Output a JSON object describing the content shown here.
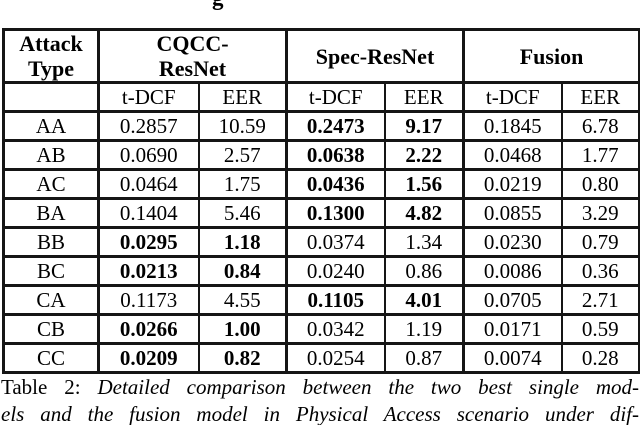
{
  "page": {
    "partial_top_text": "g"
  },
  "table": {
    "header": {
      "attack_type_line1": "Attack",
      "attack_type_line2": "Type",
      "groups": [
        {
          "label": "CQCC-ResNet",
          "line1": "CQCC-",
          "line2": "ResNet"
        },
        {
          "label": "Spec-ResNet"
        },
        {
          "label": "Fusion"
        }
      ],
      "metric_labels": [
        "t-DCF",
        "EER",
        "t-DCF",
        "EER",
        "t-DCF",
        "EER"
      ]
    },
    "rows": [
      {
        "attack": "AA",
        "values": [
          "0.2857",
          "10.59",
          "0.2473",
          "9.17",
          "0.1845",
          "6.78"
        ],
        "bold": [
          false,
          false,
          true,
          true,
          false,
          false
        ]
      },
      {
        "attack": "AB",
        "values": [
          "0.0690",
          "2.57",
          "0.0638",
          "2.22",
          "0.0468",
          "1.77"
        ],
        "bold": [
          false,
          false,
          true,
          true,
          false,
          false
        ]
      },
      {
        "attack": "AC",
        "values": [
          "0.0464",
          "1.75",
          "0.0436",
          "1.56",
          "0.0219",
          "0.80"
        ],
        "bold": [
          false,
          false,
          true,
          true,
          false,
          false
        ]
      },
      {
        "attack": "BA",
        "values": [
          "0.1404",
          "5.46",
          "0.1300",
          "4.82",
          "0.0855",
          "3.29"
        ],
        "bold": [
          false,
          false,
          true,
          true,
          false,
          false
        ]
      },
      {
        "attack": "BB",
        "values": [
          "0.0295",
          "1.18",
          "0.0374",
          "1.34",
          "0.0230",
          "0.79"
        ],
        "bold": [
          true,
          true,
          false,
          false,
          false,
          false
        ]
      },
      {
        "attack": "BC",
        "values": [
          "0.0213",
          "0.84",
          "0.0240",
          "0.86",
          "0.0086",
          "0.36"
        ],
        "bold": [
          true,
          true,
          false,
          false,
          false,
          false
        ]
      },
      {
        "attack": "CA",
        "values": [
          "0.1173",
          "4.55",
          "0.1105",
          "4.01",
          "0.0705",
          "2.71"
        ],
        "bold": [
          false,
          false,
          true,
          true,
          false,
          false
        ]
      },
      {
        "attack": "CB",
        "values": [
          "0.0266",
          "1.00",
          "0.0342",
          "1.19",
          "0.0171",
          "0.59"
        ],
        "bold": [
          true,
          true,
          false,
          false,
          false,
          false
        ]
      },
      {
        "attack": "CC",
        "values": [
          "0.0209",
          "0.82",
          "0.0254",
          "0.87",
          "0.0074",
          "0.28"
        ],
        "bold": [
          true,
          true,
          false,
          false,
          false,
          false
        ]
      }
    ]
  },
  "caption": {
    "label": "Table 2:",
    "line1_italic": "Detailed comparison between the two best single mod-",
    "line2_italic": "els and the fusion model in Physical Access scenario under dif-"
  },
  "chart_data": {
    "type": "table",
    "title": "Table 2: Detailed comparison between the two best single models and the fusion model in Physical Access scenario",
    "columns": [
      "Attack Type",
      "CQCC-ResNet t-DCF",
      "CQCC-ResNet EER",
      "Spec-ResNet t-DCF",
      "Spec-ResNet EER",
      "Fusion t-DCF",
      "Fusion EER"
    ],
    "rows": [
      [
        "AA",
        0.2857,
        10.59,
        0.2473,
        9.17,
        0.1845,
        6.78
      ],
      [
        "AB",
        0.069,
        2.57,
        0.0638,
        2.22,
        0.0468,
        1.77
      ],
      [
        "AC",
        0.0464,
        1.75,
        0.0436,
        1.56,
        0.0219,
        0.8
      ],
      [
        "BA",
        0.1404,
        5.46,
        0.13,
        4.82,
        0.0855,
        3.29
      ],
      [
        "BB",
        0.0295,
        1.18,
        0.0374,
        1.34,
        0.023,
        0.79
      ],
      [
        "BC",
        0.0213,
        0.84,
        0.024,
        0.86,
        0.0086,
        0.36
      ],
      [
        "CA",
        0.1173,
        4.55,
        0.1105,
        4.01,
        0.0705,
        2.71
      ],
      [
        "CB",
        0.0266,
        1.0,
        0.0342,
        1.19,
        0.0171,
        0.59
      ],
      [
        "CC",
        0.0209,
        0.82,
        0.0254,
        0.87,
        0.0074,
        0.28
      ]
    ]
  }
}
